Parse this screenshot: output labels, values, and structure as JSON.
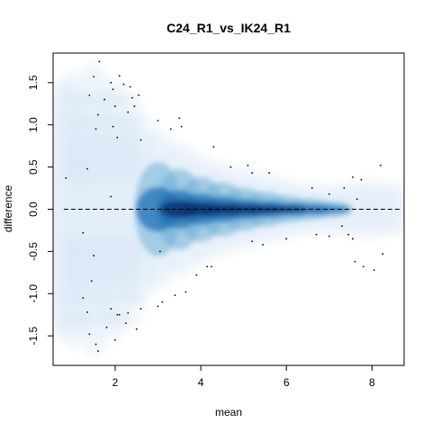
{
  "chart_data": {
    "type": "scatter",
    "style": "smoothed density scatter (MA plot)",
    "title": "C24_R1_vs_IK24_R1",
    "xlabel": "mean",
    "ylabel": "difference",
    "xlim": [
      0.55,
      8.75
    ],
    "ylim": [
      -1.85,
      1.85
    ],
    "x_ticks": [
      2,
      4,
      6,
      8
    ],
    "x_tick_labels": [
      "2",
      "4",
      "6",
      "8"
    ],
    "y_ticks": [
      -1.5,
      -1.0,
      -0.5,
      0.0,
      0.5,
      1.0,
      1.5
    ],
    "y_tick_labels": [
      "-1.5",
      "-1.0",
      "-0.5",
      "0.0",
      "0.5",
      "1.0",
      "1.5"
    ],
    "reference_line_y": 0,
    "grid": false,
    "legend": "none",
    "colors": {
      "density_high": "#08306b",
      "density_mid": "#2171b5",
      "density_low": "#deebf7",
      "points": "#000000",
      "reference_line": "#000000"
    },
    "points": [
      {
        "x": 1.63,
        "y": 1.75
      },
      {
        "x": 1.5,
        "y": 1.57
      },
      {
        "x": 2.1,
        "y": 1.58
      },
      {
        "x": 1.9,
        "y": 1.5
      },
      {
        "x": 2.2,
        "y": 1.48
      },
      {
        "x": 1.4,
        "y": 1.35
      },
      {
        "x": 2.35,
        "y": 1.45
      },
      {
        "x": 2.4,
        "y": 1.32
      },
      {
        "x": 1.95,
        "y": 1.42
      },
      {
        "x": 1.75,
        "y": 1.3
      },
      {
        "x": 2.0,
        "y": 1.22
      },
      {
        "x": 2.55,
        "y": 1.35
      },
      {
        "x": 2.45,
        "y": 1.22
      },
      {
        "x": 2.3,
        "y": 1.15
      },
      {
        "x": 1.6,
        "y": 1.12
      },
      {
        "x": 1.55,
        "y": 0.95
      },
      {
        "x": 1.95,
        "y": 0.98
      },
      {
        "x": 3.0,
        "y": 1.05
      },
      {
        "x": 3.5,
        "y": 1.08
      },
      {
        "x": 3.55,
        "y": 0.98
      },
      {
        "x": 3.3,
        "y": 0.95
      },
      {
        "x": 2.05,
        "y": 0.85
      },
      {
        "x": 2.6,
        "y": 0.82
      },
      {
        "x": 4.3,
        "y": 0.74
      },
      {
        "x": 4.7,
        "y": 0.5
      },
      {
        "x": 5.1,
        "y": 0.52
      },
      {
        "x": 5.2,
        "y": 0.43
      },
      {
        "x": 5.6,
        "y": 0.43
      },
      {
        "x": 1.35,
        "y": 0.48
      },
      {
        "x": 0.85,
        "y": 0.37
      },
      {
        "x": 1.9,
        "y": 0.15
      },
      {
        "x": 6.6,
        "y": 0.25
      },
      {
        "x": 7.0,
        "y": 0.18
      },
      {
        "x": 7.35,
        "y": 0.25
      },
      {
        "x": 7.55,
        "y": 0.38
      },
      {
        "x": 7.75,
        "y": 0.35
      },
      {
        "x": 7.65,
        "y": 0.12
      },
      {
        "x": 8.2,
        "y": 0.52
      },
      {
        "x": 1.25,
        "y": -0.28
      },
      {
        "x": 1.5,
        "y": -0.55
      },
      {
        "x": 5.2,
        "y": -0.38
      },
      {
        "x": 5.45,
        "y": -0.42
      },
      {
        "x": 6.0,
        "y": -0.35
      },
      {
        "x": 6.7,
        "y": -0.3
      },
      {
        "x": 7.0,
        "y": -0.32
      },
      {
        "x": 7.3,
        "y": -0.2
      },
      {
        "x": 7.45,
        "y": -0.3
      },
      {
        "x": 7.55,
        "y": -0.35
      },
      {
        "x": 7.6,
        "y": -0.62
      },
      {
        "x": 8.05,
        "y": -0.72
      },
      {
        "x": 8.25,
        "y": -0.53
      },
      {
        "x": 7.8,
        "y": -0.68
      },
      {
        "x": 4.15,
        "y": -0.68
      },
      {
        "x": 4.25,
        "y": -0.68
      },
      {
        "x": 3.9,
        "y": -0.78
      },
      {
        "x": 3.65,
        "y": -0.98
      },
      {
        "x": 3.4,
        "y": -1.02
      },
      {
        "x": 3.1,
        "y": -1.1
      },
      {
        "x": 3.0,
        "y": -1.15
      },
      {
        "x": 2.6,
        "y": -1.18
      },
      {
        "x": 2.3,
        "y": -1.23
      },
      {
        "x": 2.05,
        "y": -1.25
      },
      {
        "x": 1.25,
        "y": -1.05
      },
      {
        "x": 1.35,
        "y": -1.22
      },
      {
        "x": 1.8,
        "y": -1.4
      },
      {
        "x": 2.25,
        "y": -1.35
      },
      {
        "x": 2.5,
        "y": -1.42
      },
      {
        "x": 1.4,
        "y": -1.48
      },
      {
        "x": 1.55,
        "y": -1.6
      },
      {
        "x": 1.6,
        "y": -1.68
      },
      {
        "x": 2.0,
        "y": -1.55
      },
      {
        "x": 2.1,
        "y": -1.25
      },
      {
        "x": 1.9,
        "y": -1.18
      },
      {
        "x": 1.45,
        "y": -0.85
      },
      {
        "x": 3.05,
        "y": -0.5
      }
    ],
    "density": {
      "description": "smoothed point density, darkest along y=0 for mean 3–6, fanning wider at low mean",
      "core_band": [
        {
          "x": 3.0,
          "y_spread": 0.35
        },
        {
          "x": 3.5,
          "y_spread": 0.3
        },
        {
          "x": 4.0,
          "y_spread": 0.24
        },
        {
          "x": 4.5,
          "y_spread": 0.2
        },
        {
          "x": 5.0,
          "y_spread": 0.16
        },
        {
          "x": 5.5,
          "y_spread": 0.13
        },
        {
          "x": 6.0,
          "y_spread": 0.1
        },
        {
          "x": 6.5,
          "y_spread": 0.08
        },
        {
          "x": 7.0,
          "y_spread": 0.06
        }
      ]
    }
  }
}
